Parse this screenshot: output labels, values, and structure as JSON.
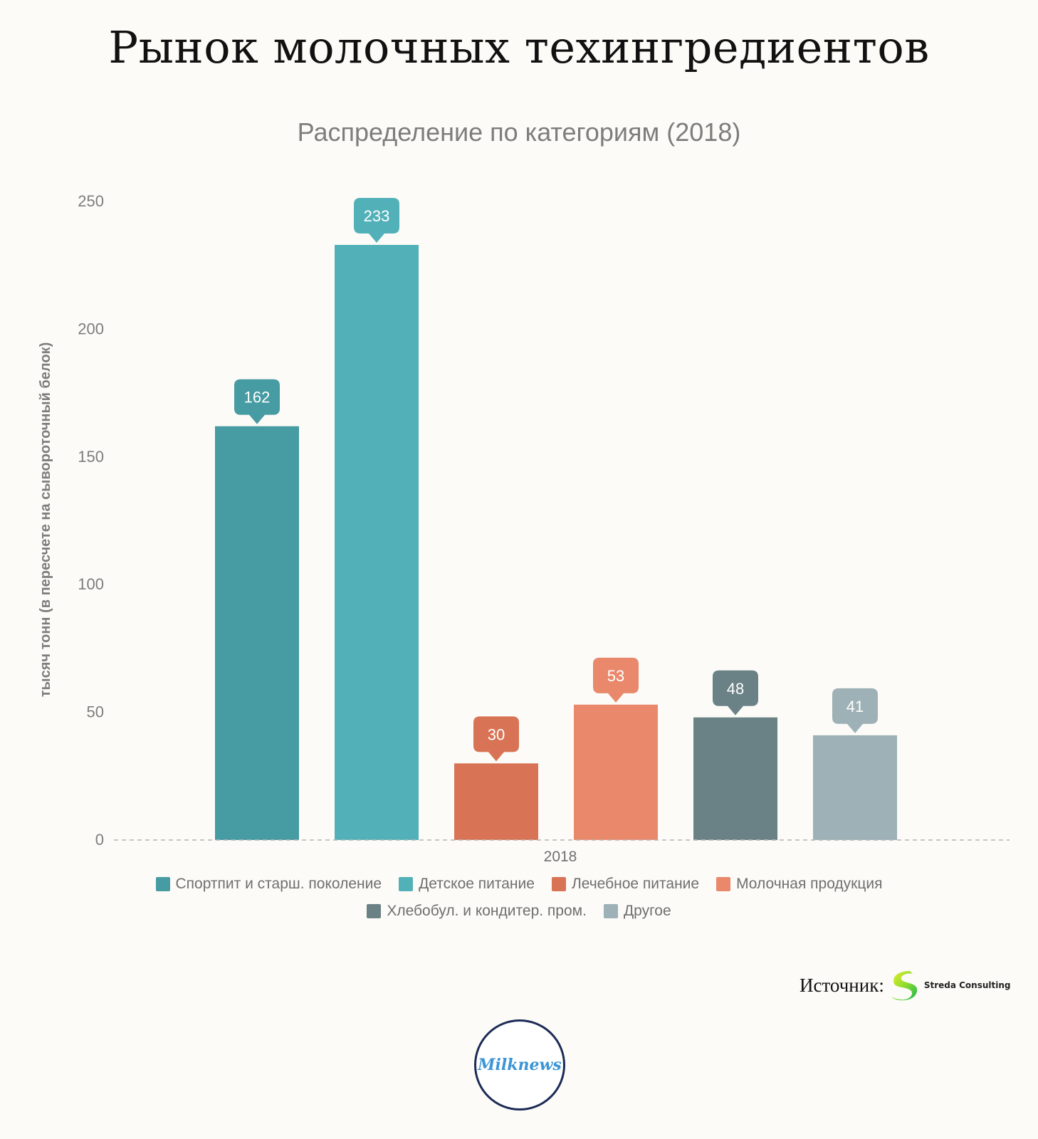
{
  "header": {
    "title": "Рынок молочных техингредиентов"
  },
  "chart_data": {
    "type": "bar",
    "title": "Распределение по категориям (2018)",
    "xlabel": "",
    "ylabel": "тысяч тонн (в пересчете на сывороточный белок)",
    "categories": [
      "2018"
    ],
    "ylim": [
      0,
      250
    ],
    "yticks": [
      0,
      50,
      100,
      150,
      200,
      250
    ],
    "grid": false,
    "legend": "bottom",
    "series": [
      {
        "name": "Спортпит и старш. поколение",
        "values": [
          162
        ],
        "color": "#479ba2"
      },
      {
        "name": "Детское питание",
        "values": [
          233
        ],
        "color": "#52b1b8"
      },
      {
        "name": "Лечебное питание",
        "values": [
          30
        ],
        "color": "#d87455"
      },
      {
        "name": "Молочная продукция",
        "values": [
          53
        ],
        "color": "#ea886c"
      },
      {
        "name": "Хлебобул. и кондитер. пром.",
        "values": [
          48
        ],
        "color": "#6a8185"
      },
      {
        "name": "Другое",
        "values": [
          41
        ],
        "color": "#9db1b6"
      }
    ]
  },
  "legend": {
    "items": [
      {
        "label": "Спортпит и старш. поколение",
        "color": "#479ba2"
      },
      {
        "label": "Детское питание",
        "color": "#52b1b8"
      },
      {
        "label": "Лечебное питание",
        "color": "#d87455"
      },
      {
        "label": "Молочная продукция",
        "color": "#ea886c"
      },
      {
        "label": "Хлебобул. и кондитер. пром.",
        "color": "#6a8185"
      },
      {
        "label": "Другое",
        "color": "#9db1b6"
      }
    ]
  },
  "source": {
    "label": "Источник:",
    "brand": "Streda Consulting",
    "logo_icon": "streda-leaf-logo"
  },
  "footer": {
    "logo_text": "Milknews"
  },
  "colors": {
    "background": "#fcfbf7",
    "axis_text": "#7d7d7d",
    "baseline": "#b5b5b5"
  }
}
